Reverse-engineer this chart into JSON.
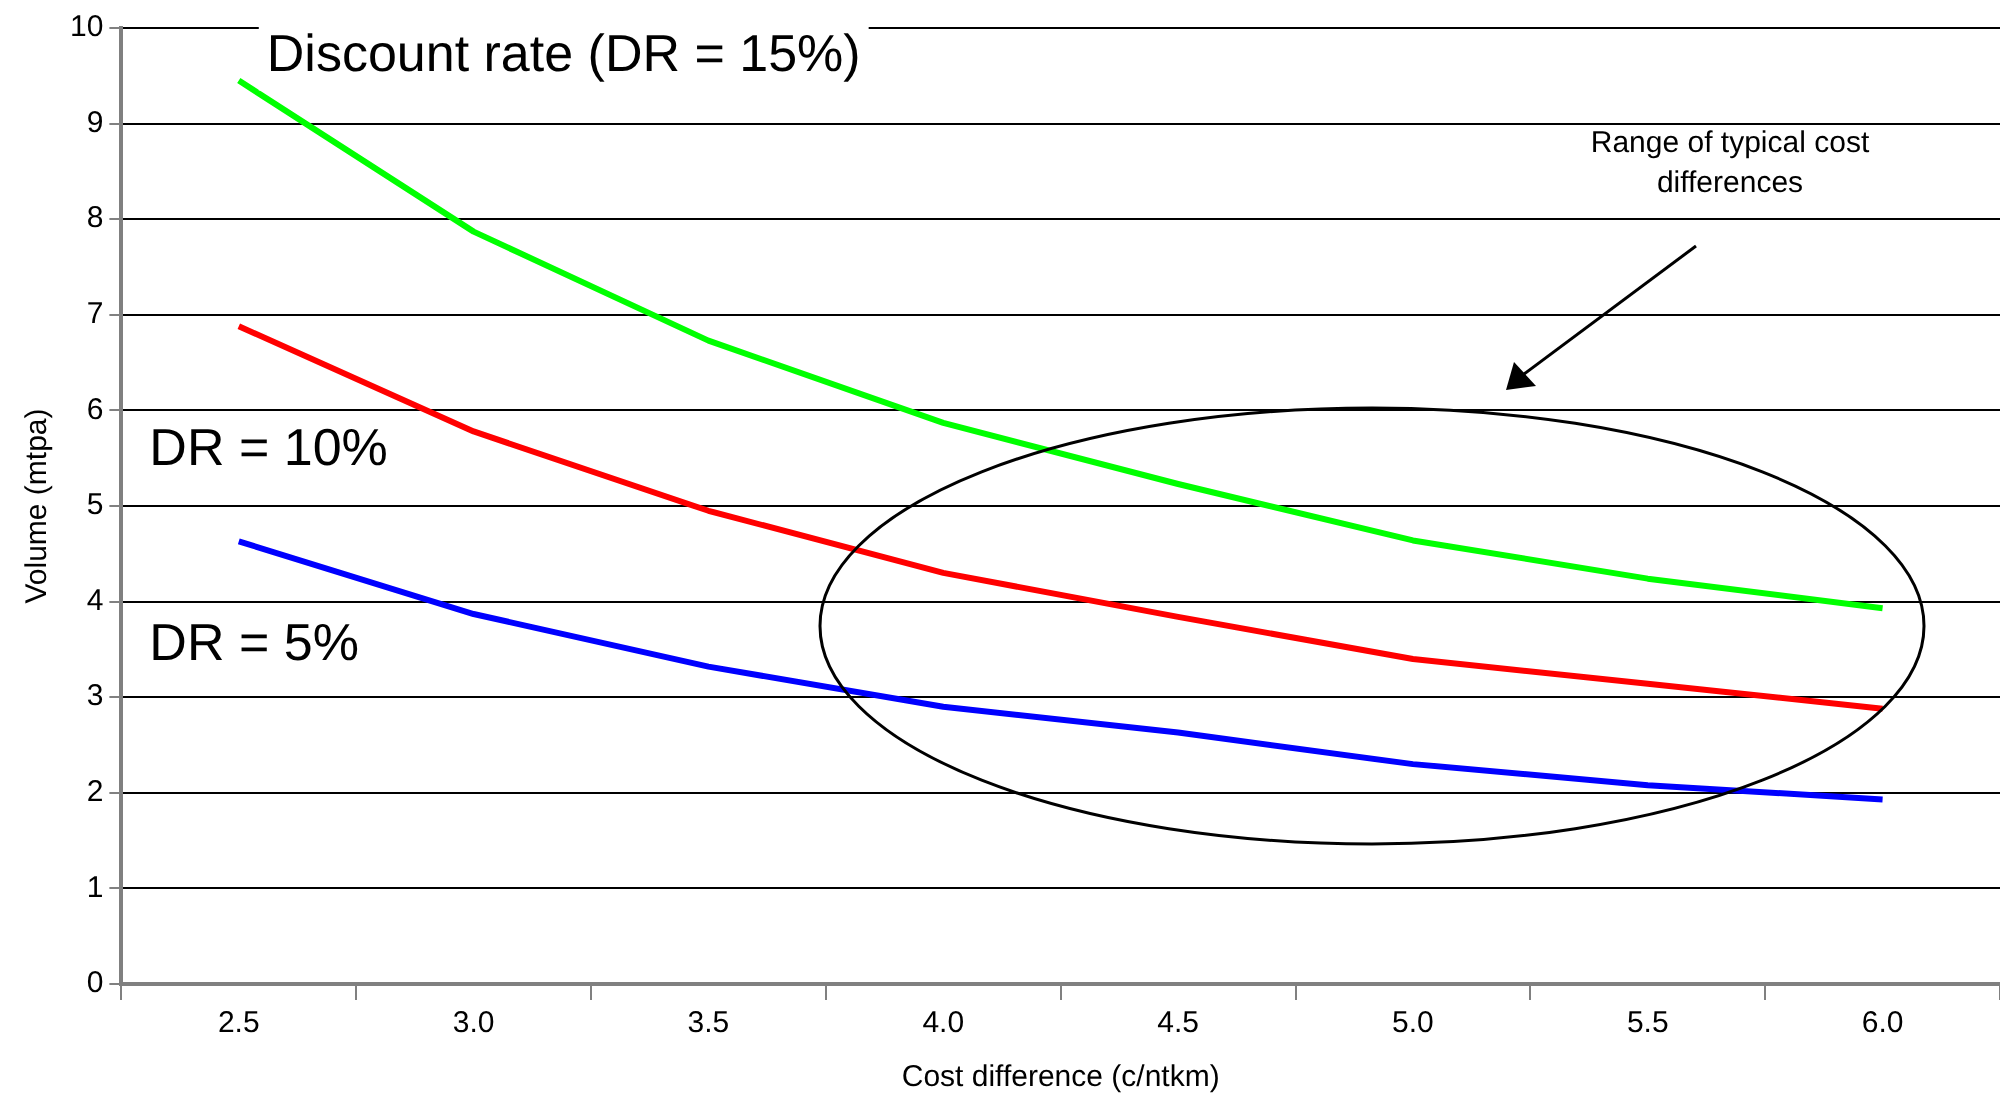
{
  "chart_data": {
    "type": "line",
    "xlabel": "Cost difference (c/ntkm)",
    "ylabel": "Volume (mtpa)",
    "categories": [
      "2.5",
      "3.0",
      "3.5",
      "4.0",
      "4.5",
      "5.0",
      "5.5",
      "6.0"
    ],
    "series": [
      {
        "name": "Discount rate (DR = 15%)",
        "color": "#00ff00",
        "values": [
          9.45,
          7.87,
          6.73,
          5.87,
          5.23,
          4.64,
          4.24,
          3.93
        ]
      },
      {
        "name": "DR = 10%",
        "color": "#ff0000",
        "values": [
          6.88,
          5.78,
          4.95,
          4.3,
          3.84,
          3.4,
          3.14,
          2.88
        ]
      },
      {
        "name": "DR = 5%",
        "color": "#0000ff",
        "values": [
          4.63,
          3.87,
          3.32,
          2.9,
          2.63,
          2.3,
          2.08,
          1.93
        ]
      }
    ],
    "ylim": [
      0,
      10
    ],
    "yticks": [
      0,
      1,
      2,
      3,
      4,
      5,
      6,
      7,
      8,
      9,
      10
    ],
    "grid": "y",
    "legend": false,
    "marker": "none",
    "line_style": "solid",
    "annotations": [
      "Range of typical cost differences"
    ]
  }
}
